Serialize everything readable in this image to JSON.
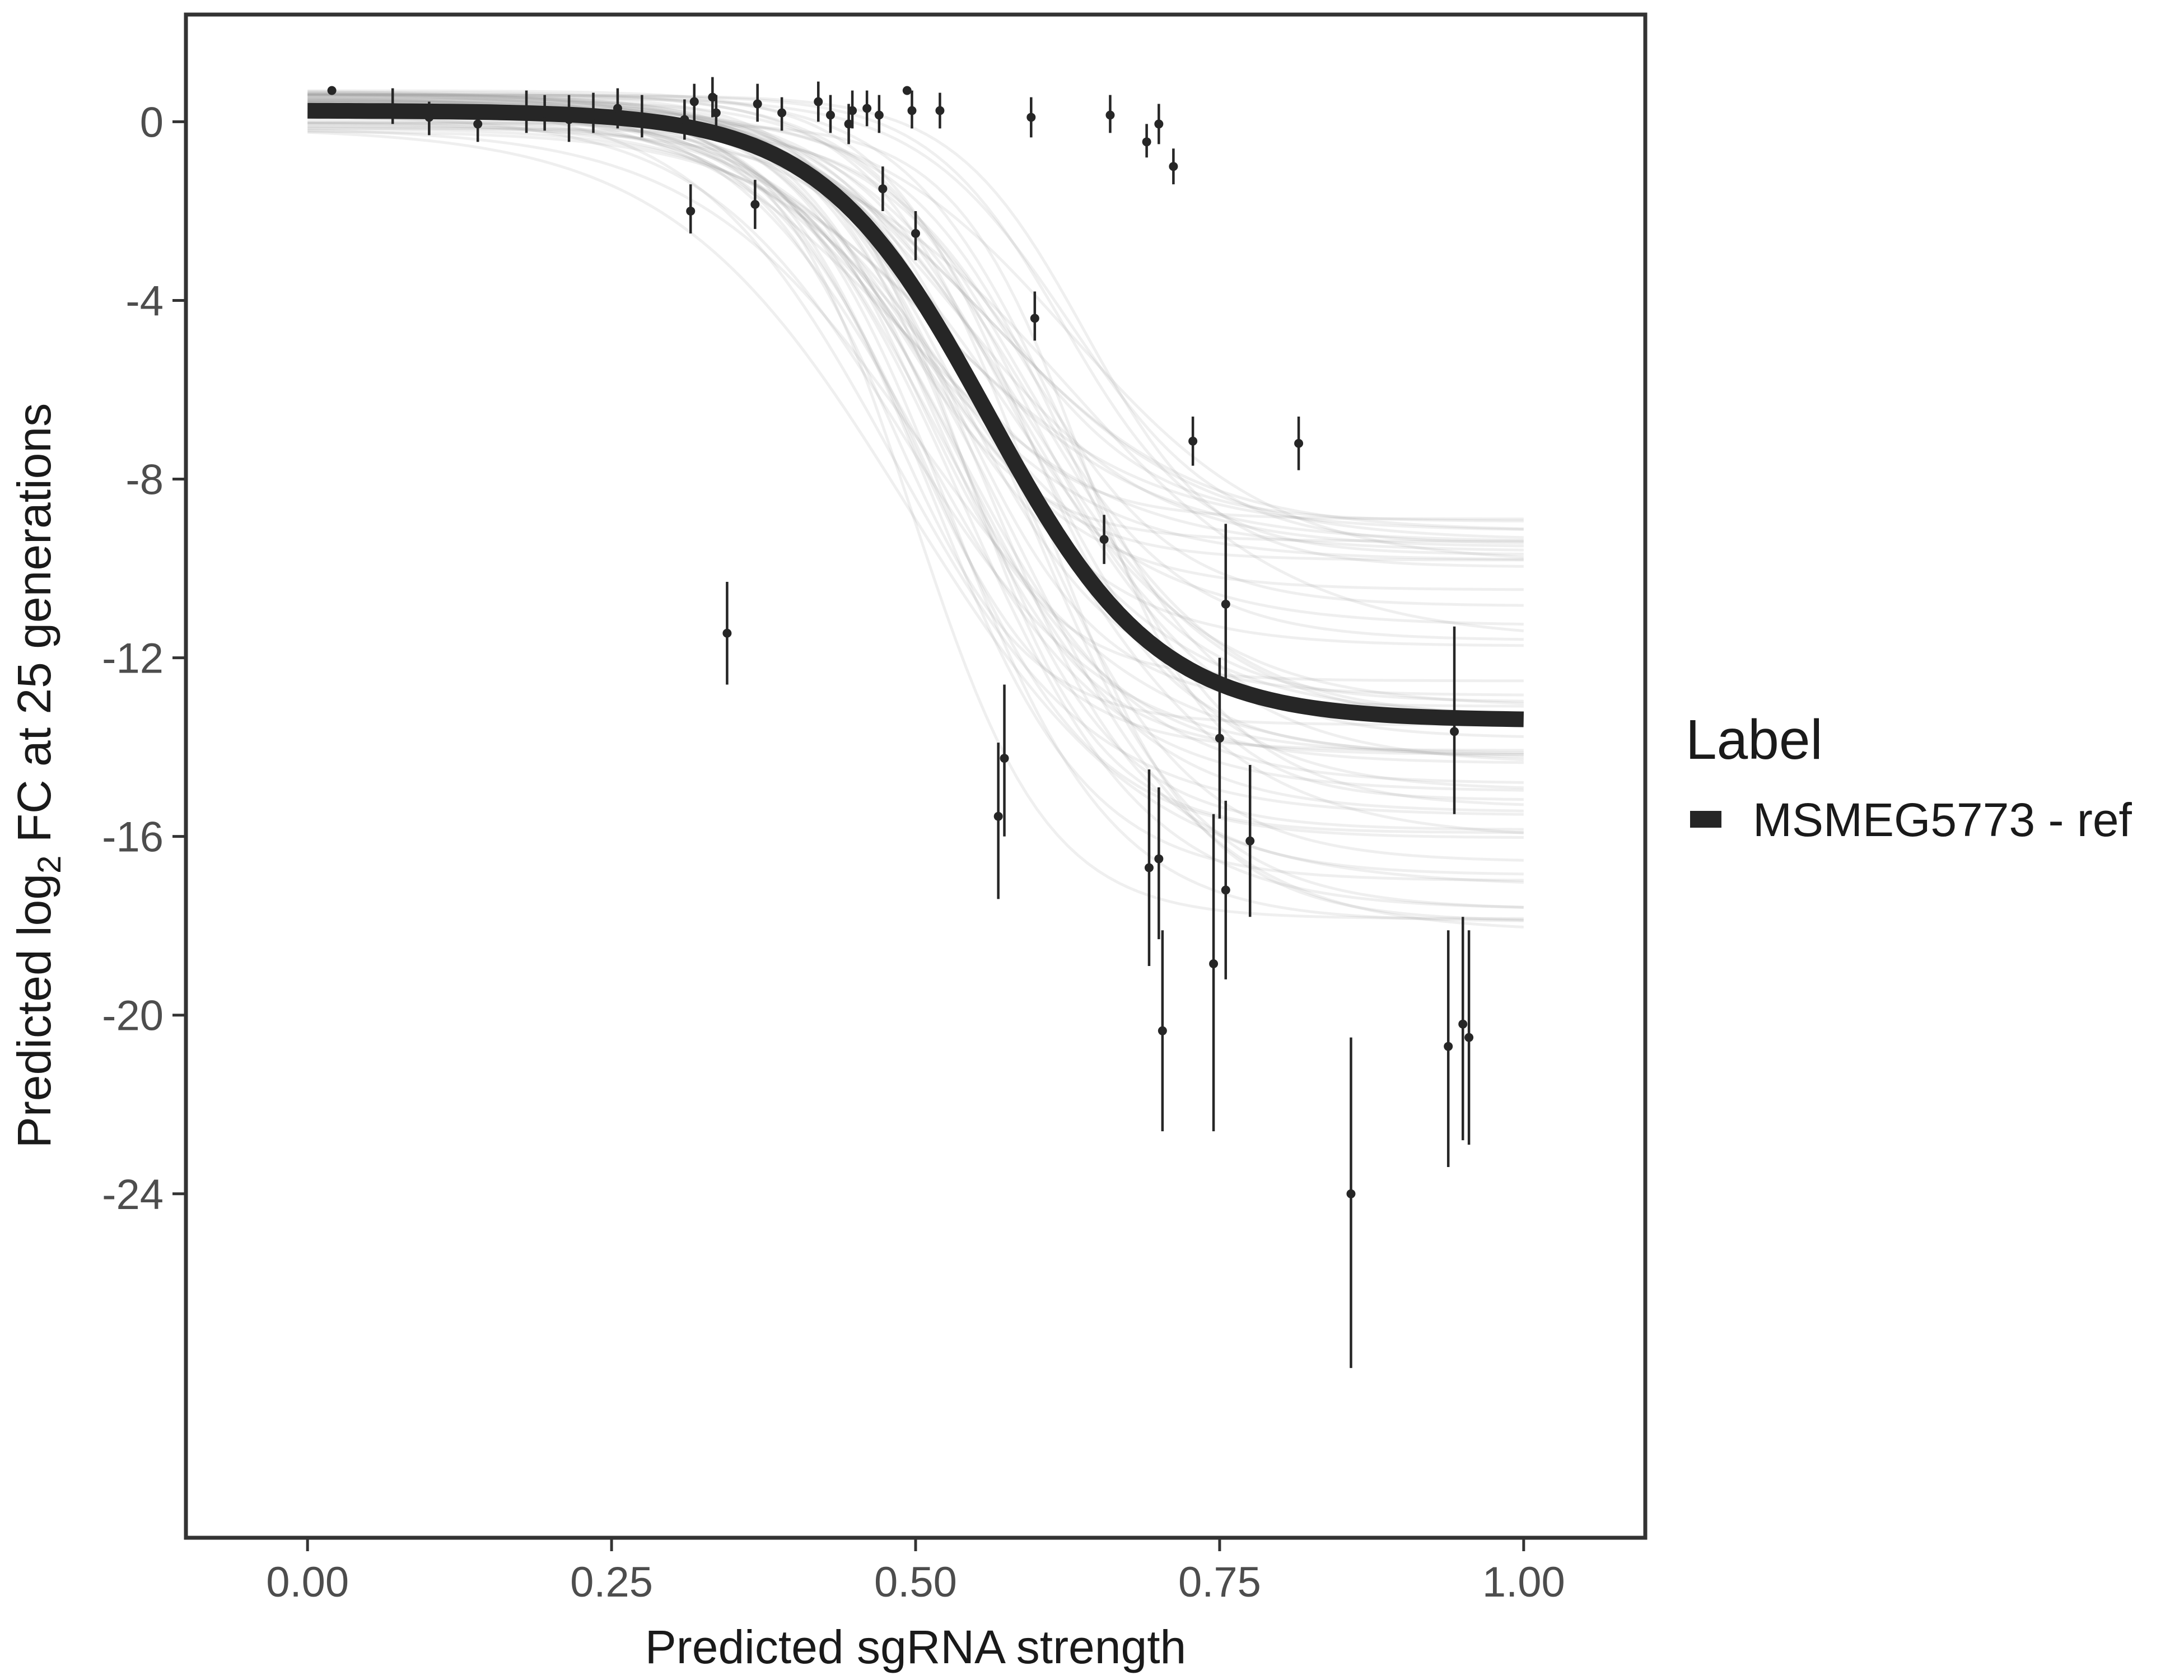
{
  "chart_data": {
    "type": "scatter",
    "xlabel": "Predicted sgRNA strength",
    "ylabel_prefix": "Predicted  log",
    "ylabel_subscript": "2",
    "ylabel_suffix": " FC at 25 generations",
    "xlim": [
      -0.1,
      1.1
    ],
    "ylim": [
      -31.7,
      2.4
    ],
    "x_ticks": [
      0.0,
      0.25,
      0.5,
      0.75,
      1.0
    ],
    "x_tick_labels": [
      "0.00",
      "0.25",
      "0.50",
      "0.75",
      "1.00"
    ],
    "y_ticks": [
      0,
      -4,
      -8,
      -12,
      -16,
      -20,
      -24
    ],
    "y_tick_labels": [
      "0",
      "-4",
      "-8",
      "-12",
      "-16",
      "-20",
      "-24"
    ],
    "grid": false,
    "legend": {
      "title": "Label",
      "placement": "right",
      "entries": [
        {
          "label": "MSMEG5773 - ref",
          "color": "#262626"
        }
      ]
    },
    "fit_curve": {
      "top": 0.25,
      "bottom": -13.4,
      "midpoint": 0.56,
      "slope": 14.5,
      "color": "#262626"
    },
    "posterior_band": {
      "color": "#9e9e9e",
      "count": 60
    },
    "series": [
      {
        "name": "MSMEG5773 - ref",
        "color": "#262626",
        "points": [
          {
            "x": 0.02,
            "y": 0.7,
            "lo": 0.7,
            "hi": 0.7
          },
          {
            "x": 0.07,
            "y": 0.2,
            "lo": -0.05,
            "hi": 0.75
          },
          {
            "x": 0.1,
            "y": 0.1,
            "lo": -0.3,
            "hi": 0.45
          },
          {
            "x": 0.14,
            "y": -0.05,
            "lo": -0.45,
            "hi": 0.3
          },
          {
            "x": 0.18,
            "y": 0.15,
            "lo": -0.25,
            "hi": 0.7
          },
          {
            "x": 0.195,
            "y": 0.2,
            "lo": -0.2,
            "hi": 0.6
          },
          {
            "x": 0.215,
            "y": 0.05,
            "lo": -0.45,
            "hi": 0.6
          },
          {
            "x": 0.235,
            "y": 0.15,
            "lo": -0.25,
            "hi": 0.65
          },
          {
            "x": 0.255,
            "y": 0.3,
            "lo": -0.15,
            "hi": 0.75
          },
          {
            "x": 0.275,
            "y": 0.1,
            "lo": -0.35,
            "hi": 0.6
          },
          {
            "x": 0.31,
            "y": 0.05,
            "lo": -0.4,
            "hi": 0.5
          },
          {
            "x": 0.315,
            "y": -2.0,
            "lo": -2.5,
            "hi": -1.4
          },
          {
            "x": 0.318,
            "y": 0.45,
            "lo": 0.0,
            "hi": 0.85
          },
          {
            "x": 0.333,
            "y": 0.55,
            "lo": 0.1,
            "hi": 1.0
          },
          {
            "x": 0.336,
            "y": 0.2,
            "lo": -0.2,
            "hi": 0.6
          },
          {
            "x": 0.345,
            "y": -11.45,
            "lo": -12.6,
            "hi": -10.3
          },
          {
            "x": 0.368,
            "y": -1.85,
            "lo": -2.4,
            "hi": -1.3
          },
          {
            "x": 0.37,
            "y": 0.4,
            "lo": 0.0,
            "hi": 0.85
          },
          {
            "x": 0.39,
            "y": 0.2,
            "lo": -0.2,
            "hi": 0.55
          },
          {
            "x": 0.42,
            "y": 0.45,
            "lo": 0.0,
            "hi": 0.9
          },
          {
            "x": 0.43,
            "y": 0.15,
            "lo": -0.25,
            "hi": 0.6
          },
          {
            "x": 0.445,
            "y": -0.05,
            "lo": -0.5,
            "hi": 0.4
          },
          {
            "x": 0.448,
            "y": 0.25,
            "lo": -0.15,
            "hi": 0.7
          },
          {
            "x": 0.46,
            "y": 0.3,
            "lo": -0.1,
            "hi": 0.7
          },
          {
            "x": 0.47,
            "y": 0.15,
            "lo": -0.25,
            "hi": 0.6
          },
          {
            "x": 0.473,
            "y": -1.5,
            "lo": -2.0,
            "hi": -1.0
          },
          {
            "x": 0.493,
            "y": 0.7,
            "lo": 0.7,
            "hi": 0.7
          },
          {
            "x": 0.497,
            "y": 0.25,
            "lo": -0.15,
            "hi": 0.7
          },
          {
            "x": 0.5,
            "y": -2.5,
            "lo": -3.1,
            "hi": -2.0
          },
          {
            "x": 0.52,
            "y": 0.25,
            "lo": -0.15,
            "hi": 0.65
          },
          {
            "x": 0.568,
            "y": -15.55,
            "lo": -17.4,
            "hi": -13.9
          },
          {
            "x": 0.573,
            "y": -14.25,
            "lo": -16.0,
            "hi": -12.6
          },
          {
            "x": 0.595,
            "y": 0.1,
            "lo": -0.35,
            "hi": 0.55
          },
          {
            "x": 0.598,
            "y": -4.4,
            "lo": -4.9,
            "hi": -3.8
          },
          {
            "x": 0.655,
            "y": -9.35,
            "lo": -9.9,
            "hi": -8.8
          },
          {
            "x": 0.66,
            "y": 0.15,
            "lo": -0.25,
            "hi": 0.6
          },
          {
            "x": 0.69,
            "y": -0.45,
            "lo": -0.8,
            "hi": -0.05
          },
          {
            "x": 0.692,
            "y": -16.7,
            "lo": -18.9,
            "hi": -14.5
          },
          {
            "x": 0.7,
            "y": -16.5,
            "lo": -18.3,
            "hi": -14.9
          },
          {
            "x": 0.7,
            "y": -0.05,
            "lo": -0.5,
            "hi": 0.4
          },
          {
            "x": 0.703,
            "y": -20.35,
            "lo": -22.6,
            "hi": -18.1
          },
          {
            "x": 0.712,
            "y": -1.0,
            "lo": -1.4,
            "hi": -0.6
          },
          {
            "x": 0.728,
            "y": -7.15,
            "lo": -7.7,
            "hi": -6.6
          },
          {
            "x": 0.745,
            "y": -18.85,
            "lo": -22.6,
            "hi": -15.5
          },
          {
            "x": 0.75,
            "y": -13.8,
            "lo": -15.6,
            "hi": -12.0
          },
          {
            "x": 0.755,
            "y": -10.8,
            "lo": -12.6,
            "hi": -9.0
          },
          {
            "x": 0.755,
            "y": -17.2,
            "lo": -19.2,
            "hi": -15.2
          },
          {
            "x": 0.775,
            "y": -16.1,
            "lo": -17.8,
            "hi": -14.4
          },
          {
            "x": 0.815,
            "y": -7.2,
            "lo": -7.8,
            "hi": -6.6
          },
          {
            "x": 0.858,
            "y": -24.0,
            "lo": -27.9,
            "hi": -20.5
          },
          {
            "x": 0.938,
            "y": -20.7,
            "lo": -23.4,
            "hi": -18.1
          },
          {
            "x": 0.943,
            "y": -13.65,
            "lo": -15.5,
            "hi": -11.3
          },
          {
            "x": 0.95,
            "y": -20.2,
            "lo": -22.8,
            "hi": -17.8
          },
          {
            "x": 0.955,
            "y": -20.5,
            "lo": -22.9,
            "hi": -18.1
          }
        ]
      }
    ]
  }
}
